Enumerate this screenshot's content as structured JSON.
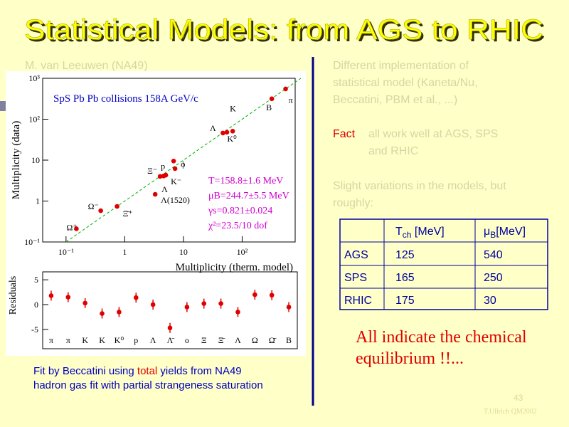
{
  "header": {
    "title": "Statistical Models: from AGS to RHIC"
  },
  "left": {
    "author": "M. van Leeuwen (NA49)",
    "caption": {
      "line1": {
        "a": "Fit by Beccatini using ",
        "b": "total",
        "c": " yields from NA49"
      },
      "line2": "hadron gas fit with partial strangeness saturation"
    }
  },
  "right": {
    "intro": [
      "Different implementation of",
      "statistical model (Kaneta/Nu,",
      "Beccatini, PBM et al., ...)"
    ],
    "fact": {
      "label": "Fact",
      "lines": [
        "all work well at AGS, SPS",
        "and RHIC"
      ]
    },
    "slight": [
      "Slight variations in the models, but",
      "roughly:"
    ],
    "table": {
      "header": [
        {
          "main": "T",
          "sub": "ch",
          "unit": " [MeV]"
        },
        {
          "main": "μ",
          "sub": "B",
          "unit": "[MeV]"
        }
      ],
      "rows": [
        [
          "AGS",
          "125",
          "540"
        ],
        [
          "SPS",
          "165",
          "250"
        ],
        [
          "RHIC",
          "175",
          "30"
        ]
      ]
    },
    "conclusion": [
      "All indicate the chemical",
      "equilibrium  !!..."
    ]
  },
  "footer": {
    "page": "43",
    "credit": "T.Ullrich QM2002"
  },
  "chart_data": [
    {
      "type": "scatter",
      "title": "SpS Pb  Pb collisions 158A GeV/c",
      "xlabel": "Multiplicity (therm. model)",
      "ylabel": "Multiplicity (data)",
      "log_x": true,
      "log_y": true,
      "color": "#e00000",
      "x": [
        0.15,
        0.39,
        0.74,
        3.3,
        4.0,
        4.6,
        5.0,
        6.8,
        7.2,
        47,
        55,
        69,
        320,
        550
      ],
      "y": [
        0.21,
        0.58,
        0.74,
        1.46,
        4.0,
        4.1,
        4.3,
        9.5,
        6.2,
        46,
        48,
        51,
        316,
        550
      ],
      "xlim": [
        0.04,
        800
      ],
      "ylim": [
        0.1,
        1000
      ],
      "xticks": [
        {
          "value": 0.1,
          "label": "10⁻¹"
        },
        1,
        10,
        {
          "value": 100,
          "label": "10²"
        }
      ],
      "yticks": [
        {
          "value": 0.1,
          "label": "10⁻¹"
        },
        1,
        10,
        {
          "value": 100,
          "label": "10²"
        },
        {
          "value": 1000,
          "label": "10³"
        }
      ],
      "fit_lines": [
        "T=158.8±1.6 MeV",
        "μB=244.7±5.5 MeV",
        "γs=0.821±0.024",
        "χ²=23.5/10 dof"
      ],
      "particle_labels": [
        "Ω⁺",
        "Ω⁻",
        "Ξ̄⁺",
        "Λ(1520)",
        "Ξ⁻",
        "p",
        "Λ",
        "ϕ",
        "K⁻",
        "K⁰",
        "Λ",
        "K",
        "B",
        "π"
      ]
    },
    {
      "type": "scatter",
      "ylabel": "Residuals",
      "color": "#e00000",
      "categories": [
        "π",
        "π",
        "K",
        "K",
        "K⁰",
        "p",
        "Λ",
        "Λ̄",
        "o",
        "Ξ",
        "Ξ̄",
        "Λ",
        "Ω",
        "Ω̄",
        "B"
      ],
      "values": [
        1.8,
        1.5,
        0.3,
        -1.8,
        -1.5,
        1.4,
        0,
        -4.7,
        -0.5,
        0.2,
        0.2,
        -1.5,
        2,
        1.9,
        -0.5
      ],
      "ylim": [
        -8.9,
        6.6
      ],
      "yticks": [
        5,
        0,
        -5
      ]
    }
  ]
}
